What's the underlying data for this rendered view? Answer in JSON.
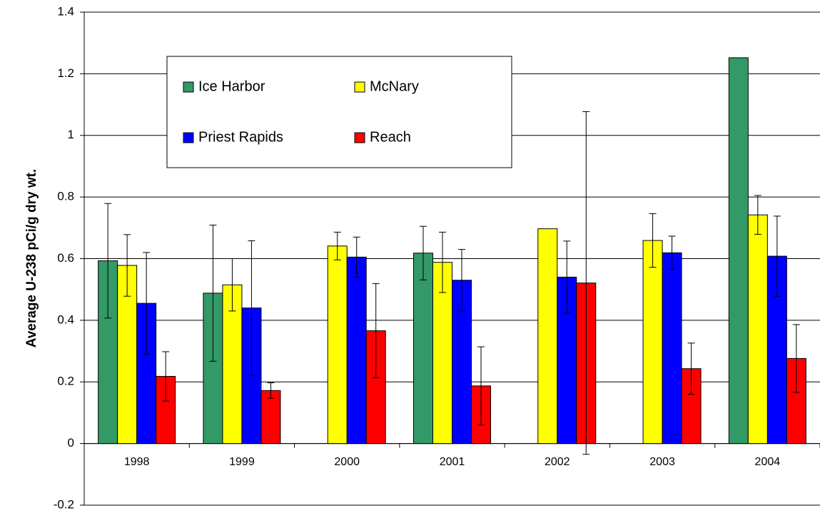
{
  "chart_data": {
    "type": "bar",
    "y_label": "Average U-238 pCi/g dry wt.",
    "categories": [
      "1998",
      "1999",
      "2000",
      "2001",
      "2002",
      "2003",
      "2004"
    ],
    "series": [
      {
        "name": "Ice Harbor",
        "color": "#339966",
        "values": [
          0.593,
          0.488,
          null,
          0.618,
          null,
          null,
          1.252
        ],
        "errors": [
          0.186,
          0.221,
          null,
          0.087,
          null,
          null,
          null
        ]
      },
      {
        "name": "McNary",
        "color": "#ffff00",
        "values": [
          0.578,
          0.515,
          0.641,
          0.588,
          0.697,
          0.659,
          0.742
        ],
        "errors": [
          0.1,
          0.085,
          0.045,
          0.098,
          null,
          0.087,
          0.063
        ]
      },
      {
        "name": "Priest Rapids",
        "color": "#0000ff",
        "values": [
          0.455,
          0.44,
          0.605,
          0.53,
          0.54,
          0.619,
          0.608
        ],
        "errors": [
          0.165,
          0.218,
          0.065,
          0.1,
          0.117,
          0.054,
          0.13
        ]
      },
      {
        "name": "Reach",
        "color": "#ff0000",
        "values": [
          0.218,
          0.172,
          0.366,
          0.187,
          0.521,
          0.243,
          0.276
        ],
        "errors": [
          0.08,
          0.025,
          0.153,
          0.127,
          0.556,
          0.083,
          0.11
        ]
      }
    ],
    "ylim": [
      -0.2,
      1.4
    ],
    "yticks": [
      -0.2,
      0,
      0.2,
      0.4,
      0.6,
      0.8,
      1,
      1.2,
      1.4
    ],
    "grid": true
  }
}
